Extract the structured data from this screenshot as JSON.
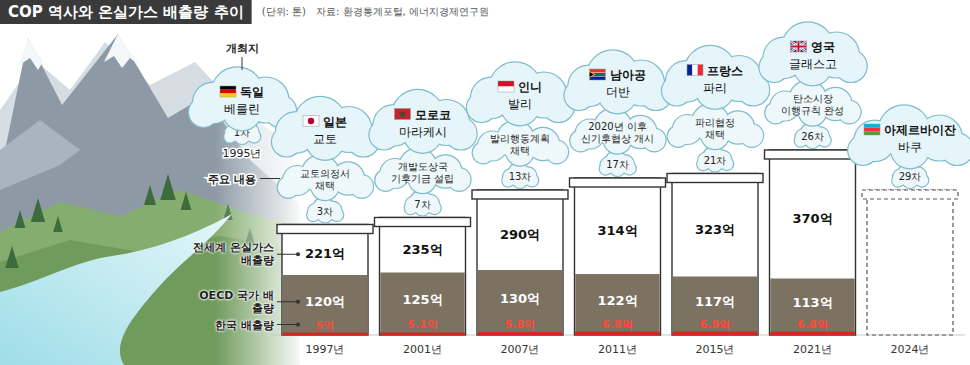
{
  "chart_data": {
    "type": "bar",
    "title": "COP 역사와 온실가스 배출량 추이",
    "subtitle": "(단위: 톤)",
    "source": "자료: 환경통계포털, 에너지경제연구원",
    "categories": [
      "1997년",
      "2001년",
      "2007년",
      "2011년",
      "2015년",
      "2021년",
      "2024년"
    ],
    "series": [
      {
        "name": "전세계 온실가스 배출량",
        "color": "#ffffff",
        "values": [
          221,
          235,
          290,
          314,
          323,
          370,
          null
        ],
        "value_labels": [
          "221억",
          "235억",
          "290억",
          "314억",
          "323억",
          "370억",
          null
        ]
      },
      {
        "name": "OECD 국가 배출량",
        "color": "#7b7261",
        "values": [
          120,
          125,
          130,
          122,
          117,
          113,
          null
        ],
        "value_labels": [
          "120억",
          "125억",
          "130억",
          "122억",
          "117억",
          "113억",
          null
        ]
      },
      {
        "name": "한국 배출량",
        "color": "#d9261c",
        "values": [
          5,
          5.1,
          5.8,
          6.8,
          6.9,
          6.8,
          null
        ],
        "value_labels": [
          "5억",
          "5.1억",
          "5.8억",
          "6.8억",
          "6.9억",
          "6.8억",
          null
        ]
      }
    ],
    "ylim": [
      0,
      400
    ],
    "stacked": false,
    "data_labels": true,
    "tick_labels": "x",
    "row_labels": {
      "host": "개최지",
      "content": "주요 내용"
    },
    "events": [
      {
        "year": "1995년",
        "session": "1차",
        "country": "독일",
        "city": "베를린"
      },
      {
        "session": "3차",
        "country": "일본",
        "city": "교토",
        "content": [
          "교토의정서",
          "채택"
        ]
      },
      {
        "session": "7차",
        "country": "모로코",
        "city": "마라케시",
        "content": [
          "개발도상국",
          "기후기금 설립"
        ]
      },
      {
        "session": "13차",
        "country": "인니",
        "city": "발리",
        "content": [
          "발리행동계획",
          "채택"
        ]
      },
      {
        "session": "17차",
        "country": "남아공",
        "city": "더반",
        "content": [
          "2020년 이후",
          "신기후협상 개시"
        ]
      },
      {
        "session": "21차",
        "country": "프랑스",
        "city": "파리",
        "content": [
          "파리협정",
          "채택"
        ]
      },
      {
        "session": "26차",
        "country": "영국",
        "city": "글래스고",
        "content": [
          "탄소시장",
          "이행규칙 완성"
        ]
      },
      {
        "session": "29차",
        "country": "아제르바이잔",
        "city": "바쿠"
      }
    ]
  }
}
